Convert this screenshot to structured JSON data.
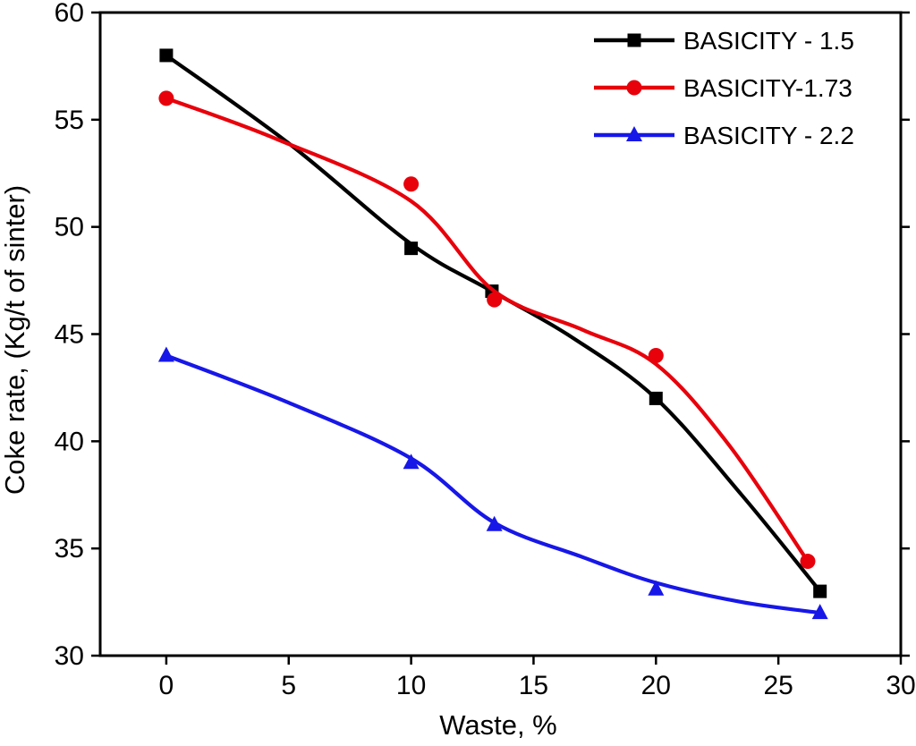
{
  "chart_data": {
    "type": "line",
    "title": "",
    "xlabel": "Waste, %",
    "ylabel": "Coke rate, (Kg/t of sinter)",
    "xlim": [
      -2.7,
      30
    ],
    "ylim": [
      30,
      60
    ],
    "x_ticks": [
      0,
      5,
      10,
      15,
      20,
      25,
      30
    ],
    "y_ticks": [
      30,
      35,
      40,
      45,
      50,
      55,
      60
    ],
    "grid": false,
    "legend_position": "top-right",
    "axis_color": "#000000",
    "background_color": "#ffffff",
    "series": [
      {
        "name": "BASICITY - 1.5",
        "color": "#000000",
        "marker": "square",
        "points": [
          [
            0,
            58
          ],
          [
            10,
            49
          ],
          [
            13.3,
            47
          ],
          [
            20,
            42
          ],
          [
            26.7,
            33
          ]
        ],
        "fit": [
          [
            0,
            58
          ],
          [
            5,
            53.9
          ],
          [
            10,
            49.2
          ],
          [
            13.3,
            47.0
          ],
          [
            16.5,
            44.9
          ],
          [
            20,
            42.0
          ],
          [
            23.5,
            37.5
          ],
          [
            26.7,
            33.0
          ]
        ]
      },
      {
        "name": "BASICITY-1.73",
        "color": "#e8000b",
        "marker": "circle",
        "points": [
          [
            0,
            56
          ],
          [
            10,
            52
          ],
          [
            13.4,
            46.6
          ],
          [
            20,
            44
          ],
          [
            26.2,
            34.4
          ]
        ],
        "fit": [
          [
            0,
            56
          ],
          [
            4.5,
            54.1
          ],
          [
            10,
            51.2
          ],
          [
            13.4,
            47.0
          ],
          [
            17,
            45.2
          ],
          [
            20,
            43.6
          ],
          [
            23,
            39.8
          ],
          [
            26.2,
            34.4
          ]
        ]
      },
      {
        "name": "BASICITY - 2.2",
        "color": "#1717e8",
        "marker": "triangle",
        "points": [
          [
            0,
            44
          ],
          [
            10,
            39
          ],
          [
            13.4,
            36.1
          ],
          [
            20,
            33.1
          ],
          [
            26.7,
            32
          ]
        ],
        "fit": [
          [
            0,
            44
          ],
          [
            5,
            41.8
          ],
          [
            10,
            39.2
          ],
          [
            13.4,
            36.2
          ],
          [
            17,
            34.6
          ],
          [
            20,
            33.4
          ],
          [
            23.5,
            32.5
          ],
          [
            26.7,
            32.0
          ]
        ]
      }
    ]
  }
}
